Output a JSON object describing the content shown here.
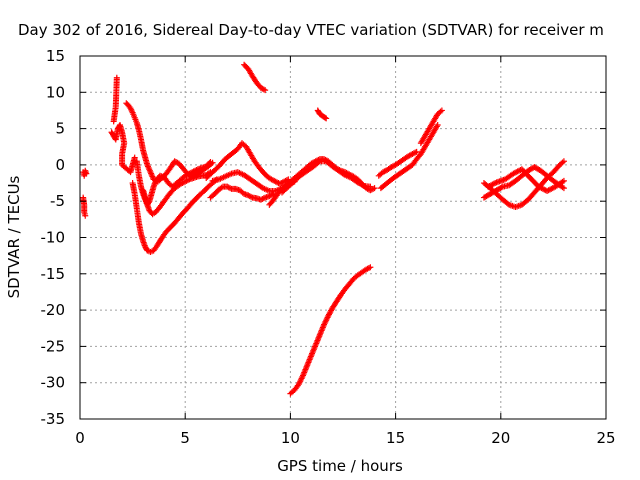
{
  "chart_data": {
    "type": "scatter",
    "title": "Day 302 of 2016, Sidereal Day-to-day VTEC variation (SDTVAR) for receiver m",
    "xlabel": "GPS time / hours",
    "ylabel": "SDTVAR / TECUs",
    "xlim": [
      0,
      25
    ],
    "ylim": [
      -35,
      15
    ],
    "xticks": [
      0,
      5,
      10,
      15,
      20,
      25
    ],
    "yticks": [
      15,
      10,
      5,
      0,
      -5,
      -10,
      -15,
      -20,
      -25,
      -30,
      -35
    ],
    "grid": true,
    "marker": "+",
    "color": "#ff0000",
    "segments": [
      [
        [
          0.15,
          -1.0
        ],
        [
          0.2,
          -1.5
        ],
        [
          0.25,
          -0.8
        ],
        [
          0.3,
          -1.2
        ]
      ],
      [
        [
          0.15,
          -4.5
        ],
        [
          0.2,
          -5.5
        ],
        [
          0.2,
          -6.5
        ],
        [
          0.25,
          -7.0
        ]
      ],
      [
        [
          1.6,
          6.0
        ],
        [
          1.7,
          8.0
        ],
        [
          1.75,
          12.0
        ]
      ],
      [
        [
          1.5,
          4.5
        ],
        [
          1.6,
          4.0
        ],
        [
          1.7,
          3.5
        ],
        [
          1.8,
          5.0
        ],
        [
          1.9,
          5.5
        ],
        [
          2.0,
          4.5
        ],
        [
          2.1,
          3.0
        ],
        [
          2.0,
          1.5
        ],
        [
          2.0,
          0.0
        ],
        [
          2.2,
          -0.5
        ],
        [
          2.4,
          -1.0
        ],
        [
          2.5,
          0.0
        ],
        [
          2.6,
          1.0
        ]
      ],
      [
        [
          2.2,
          8.5
        ],
        [
          2.3,
          8.2
        ],
        [
          2.4,
          7.8
        ],
        [
          2.5,
          7.2
        ],
        [
          2.6,
          6.5
        ],
        [
          2.7,
          5.8
        ],
        [
          2.8,
          4.8
        ],
        [
          2.9,
          3.5
        ],
        [
          3.0,
          2.0
        ],
        [
          3.1,
          1.0
        ],
        [
          3.2,
          0.0
        ],
        [
          3.35,
          -1.0
        ],
        [
          3.5,
          -2.0
        ],
        [
          3.7,
          -2.3
        ],
        [
          3.9,
          -1.8
        ],
        [
          4.1,
          -1.2
        ],
        [
          4.3,
          -0.4
        ],
        [
          4.5,
          0.5
        ],
        [
          4.7,
          0.2
        ],
        [
          4.9,
          -0.5
        ],
        [
          5.1,
          -1.2
        ],
        [
          5.3,
          -1.5
        ],
        [
          5.5,
          -1.2
        ],
        [
          5.7,
          -1.0
        ],
        [
          5.9,
          -0.6
        ],
        [
          6.1,
          -0.2
        ],
        [
          6.3,
          0.3
        ]
      ],
      [
        [
          2.7,
          0.5
        ],
        [
          2.8,
          -1.5
        ],
        [
          2.9,
          -3.0
        ],
        [
          3.0,
          -4.0
        ],
        [
          3.1,
          -4.8
        ],
        [
          3.2,
          -5.5
        ],
        [
          3.3,
          -6.3
        ],
        [
          3.45,
          -6.8
        ],
        [
          3.6,
          -6.5
        ],
        [
          3.8,
          -5.8
        ],
        [
          4.0,
          -5.0
        ],
        [
          4.2,
          -4.2
        ],
        [
          4.4,
          -3.5
        ],
        [
          4.6,
          -3.0
        ],
        [
          4.8,
          -2.6
        ],
        [
          5.0,
          -2.3
        ],
        [
          5.2,
          -2.0
        ],
        [
          5.4,
          -1.8
        ],
        [
          5.6,
          -1.6
        ],
        [
          5.8,
          -1.5
        ],
        [
          6.0,
          -1.4
        ],
        [
          6.2,
          -1.0
        ]
      ],
      [
        [
          2.5,
          -2.5
        ],
        [
          2.6,
          -4.0
        ],
        [
          2.7,
          -6.0
        ],
        [
          2.8,
          -8.0
        ],
        [
          2.9,
          -9.5
        ],
        [
          3.0,
          -10.5
        ],
        [
          3.1,
          -11.3
        ],
        [
          3.2,
          -11.8
        ],
        [
          3.35,
          -12.0
        ],
        [
          3.5,
          -11.8
        ],
        [
          3.65,
          -11.2
        ],
        [
          3.8,
          -10.5
        ],
        [
          3.95,
          -9.8
        ],
        [
          4.1,
          -9.2
        ],
        [
          4.3,
          -8.6
        ],
        [
          4.5,
          -8.0
        ],
        [
          4.7,
          -7.3
        ],
        [
          4.9,
          -6.6
        ],
        [
          5.1,
          -6.0
        ],
        [
          5.3,
          -5.3
        ],
        [
          5.5,
          -4.7
        ],
        [
          5.7,
          -4.1
        ],
        [
          5.9,
          -3.6
        ],
        [
          6.1,
          -3.0
        ],
        [
          6.3,
          -2.5
        ],
        [
          6.5,
          -2.0
        ]
      ],
      [
        [
          3.0,
          -3.5
        ],
        [
          3.1,
          -4.5
        ],
        [
          3.2,
          -5.5
        ],
        [
          3.3,
          -5.0
        ],
        [
          3.4,
          -4.0
        ],
        [
          3.5,
          -3.0
        ],
        [
          3.6,
          -2.2
        ],
        [
          3.8,
          -1.5
        ],
        [
          4.0,
          -1.7
        ],
        [
          4.2,
          -2.5
        ],
        [
          4.4,
          -3.0
        ],
        [
          4.6,
          -2.5
        ],
        [
          4.8,
          -2.0
        ],
        [
          5.0,
          -1.5
        ],
        [
          5.2,
          -1.2
        ],
        [
          5.4,
          -0.9
        ],
        [
          5.6,
          -0.6
        ],
        [
          5.8,
          -0.4
        ],
        [
          6.0,
          -0.2
        ],
        [
          6.2,
          0.4
        ]
      ],
      [
        [
          6.2,
          -4.5
        ],
        [
          6.4,
          -4.0
        ],
        [
          6.6,
          -3.4
        ],
        [
          6.8,
          -3.0
        ],
        [
          7.0,
          -3.0
        ],
        [
          7.2,
          -3.3
        ],
        [
          7.4,
          -3.3
        ],
        [
          7.6,
          -3.5
        ],
        [
          7.8,
          -4.0
        ],
        [
          8.0,
          -4.2
        ],
        [
          8.2,
          -4.5
        ],
        [
          8.4,
          -4.6
        ],
        [
          8.6,
          -4.8
        ],
        [
          8.8,
          -4.5
        ],
        [
          9.0,
          -4.3
        ],
        [
          9.2,
          -4.0
        ]
      ],
      [
        [
          6.0,
          -1.8
        ],
        [
          6.3,
          -1.0
        ],
        [
          6.6,
          -0.2
        ],
        [
          6.9,
          0.8
        ],
        [
          7.2,
          1.5
        ],
        [
          7.5,
          2.2
        ],
        [
          7.7,
          3.0
        ],
        [
          7.9,
          2.5
        ],
        [
          8.1,
          1.5
        ],
        [
          8.3,
          0.5
        ],
        [
          8.5,
          -0.3
        ],
        [
          8.7,
          -1.0
        ],
        [
          8.9,
          -1.6
        ],
        [
          9.1,
          -2.0
        ],
        [
          9.3,
          -2.3
        ],
        [
          9.5,
          -2.6
        ],
        [
          9.7,
          -2.3
        ],
        [
          9.9,
          -2.0
        ]
      ],
      [
        [
          6.3,
          -2.2
        ],
        [
          6.6,
          -2.0
        ],
        [
          6.9,
          -1.6
        ],
        [
          7.2,
          -1.2
        ],
        [
          7.5,
          -1.0
        ],
        [
          7.8,
          -1.4
        ],
        [
          8.1,
          -2.0
        ],
        [
          8.4,
          -2.6
        ],
        [
          8.7,
          -3.2
        ],
        [
          9.0,
          -3.6
        ],
        [
          9.3,
          -3.6
        ],
        [
          9.6,
          -3.2
        ],
        [
          9.9,
          -2.7
        ],
        [
          10.2,
          -2.3
        ]
      ],
      [
        [
          7.8,
          13.8
        ],
        [
          8.0,
          13.2
        ],
        [
          8.2,
          12.2
        ],
        [
          8.4,
          11.3
        ],
        [
          8.6,
          10.6
        ],
        [
          8.8,
          10.3
        ]
      ],
      [
        [
          9.0,
          -5.5
        ],
        [
          9.2,
          -4.8
        ],
        [
          9.4,
          -4.0
        ],
        [
          9.6,
          -3.3
        ],
        [
          9.8,
          -2.8
        ],
        [
          10.0,
          -2.3
        ],
        [
          10.2,
          -1.8
        ],
        [
          10.4,
          -1.3
        ],
        [
          10.6,
          -0.8
        ],
        [
          10.8,
          -0.3
        ],
        [
          11.0,
          0.2
        ],
        [
          11.2,
          0.5
        ],
        [
          11.4,
          0.8
        ],
        [
          11.6,
          0.8
        ],
        [
          11.8,
          0.5
        ],
        [
          12.0,
          0.0
        ],
        [
          12.2,
          -0.5
        ],
        [
          12.4,
          -0.8
        ],
        [
          12.6,
          -1.0
        ],
        [
          12.8,
          -1.3
        ],
        [
          13.0,
          -1.6
        ],
        [
          13.2,
          -2.0
        ],
        [
          13.4,
          -2.6
        ],
        [
          13.6,
          -3.2
        ],
        [
          13.8,
          -3.5
        ],
        [
          14.0,
          -3.2
        ]
      ],
      [
        [
          9.6,
          -3.8
        ],
        [
          9.9,
          -3.0
        ],
        [
          10.2,
          -2.2
        ],
        [
          10.5,
          -1.4
        ],
        [
          10.8,
          -0.8
        ],
        [
          11.1,
          -0.2
        ],
        [
          11.4,
          0.5
        ],
        [
          11.7,
          0.5
        ],
        [
          12.0,
          -0.2
        ],
        [
          12.3,
          -0.8
        ],
        [
          12.6,
          -1.4
        ],
        [
          12.9,
          -1.8
        ],
        [
          13.2,
          -2.4
        ],
        [
          13.5,
          -2.9
        ],
        [
          13.8,
          -3.0
        ]
      ],
      [
        [
          11.3,
          7.5
        ],
        [
          11.4,
          7.0
        ],
        [
          11.5,
          6.8
        ],
        [
          11.6,
          6.6
        ],
        [
          11.7,
          6.4
        ]
      ],
      [
        [
          10.0,
          -31.5
        ],
        [
          10.2,
          -31.0
        ],
        [
          10.4,
          -30.2
        ],
        [
          10.6,
          -29.0
        ],
        [
          10.8,
          -27.6
        ],
        [
          11.0,
          -26.2
        ],
        [
          11.2,
          -24.8
        ],
        [
          11.4,
          -23.4
        ],
        [
          11.6,
          -22.0
        ],
        [
          11.8,
          -20.8
        ],
        [
          12.0,
          -19.7
        ],
        [
          12.2,
          -18.8
        ],
        [
          12.4,
          -17.9
        ],
        [
          12.6,
          -17.1
        ],
        [
          12.8,
          -16.4
        ],
        [
          13.0,
          -15.7
        ],
        [
          13.2,
          -15.2
        ],
        [
          13.4,
          -14.8
        ],
        [
          13.6,
          -14.4
        ],
        [
          13.8,
          -14.1
        ]
      ],
      [
        [
          14.3,
          -3.2
        ],
        [
          14.6,
          -2.5
        ],
        [
          14.9,
          -1.8
        ],
        [
          15.2,
          -1.2
        ],
        [
          15.5,
          -0.6
        ],
        [
          15.8,
          0.0
        ],
        [
          16.0,
          0.8
        ],
        [
          16.2,
          1.5
        ],
        [
          16.4,
          2.5
        ],
        [
          16.6,
          3.5
        ],
        [
          16.8,
          4.5
        ],
        [
          17.0,
          5.5
        ]
      ],
      [
        [
          14.2,
          -1.5
        ],
        [
          14.4,
          -1.0
        ],
        [
          14.6,
          -0.7
        ],
        [
          14.8,
          -0.3
        ],
        [
          15.0,
          0.0
        ],
        [
          15.2,
          0.4
        ],
        [
          15.4,
          0.8
        ],
        [
          15.6,
          1.2
        ],
        [
          15.8,
          1.5
        ],
        [
          16.0,
          1.8
        ]
      ],
      [
        [
          16.2,
          3.0
        ],
        [
          16.4,
          4.0
        ],
        [
          16.6,
          5.0
        ],
        [
          16.8,
          6.0
        ],
        [
          17.0,
          7.0
        ],
        [
          17.2,
          7.5
        ]
      ],
      [
        [
          19.2,
          -2.5
        ],
        [
          19.5,
          -3.2
        ],
        [
          19.8,
          -4.0
        ],
        [
          20.1,
          -4.8
        ],
        [
          20.4,
          -5.5
        ],
        [
          20.7,
          -5.8
        ],
        [
          21.0,
          -5.5
        ],
        [
          21.3,
          -4.8
        ],
        [
          21.6,
          -3.8
        ],
        [
          21.9,
          -2.8
        ],
        [
          22.2,
          -1.8
        ],
        [
          22.5,
          -1.0
        ],
        [
          22.8,
          0.0
        ],
        [
          23.0,
          0.5
        ]
      ],
      [
        [
          19.2,
          -4.5
        ],
        [
          19.5,
          -4.0
        ],
        [
          19.8,
          -3.5
        ],
        [
          20.1,
          -3.0
        ],
        [
          20.4,
          -2.8
        ],
        [
          20.7,
          -2.2
        ],
        [
          21.0,
          -1.5
        ],
        [
          21.3,
          -0.8
        ],
        [
          21.6,
          -0.3
        ],
        [
          21.9,
          -0.8
        ],
        [
          22.2,
          -1.5
        ],
        [
          22.5,
          -2.2
        ],
        [
          22.8,
          -2.8
        ],
        [
          23.0,
          -3.2
        ]
      ],
      [
        [
          19.4,
          -3.0
        ],
        [
          19.8,
          -2.4
        ],
        [
          20.2,
          -2.0
        ],
        [
          20.6,
          -1.2
        ],
        [
          21.0,
          -0.6
        ],
        [
          21.4,
          -1.8
        ],
        [
          21.8,
          -3.0
        ],
        [
          22.2,
          -3.6
        ],
        [
          22.6,
          -3.0
        ],
        [
          23.0,
          -2.2
        ]
      ]
    ]
  }
}
